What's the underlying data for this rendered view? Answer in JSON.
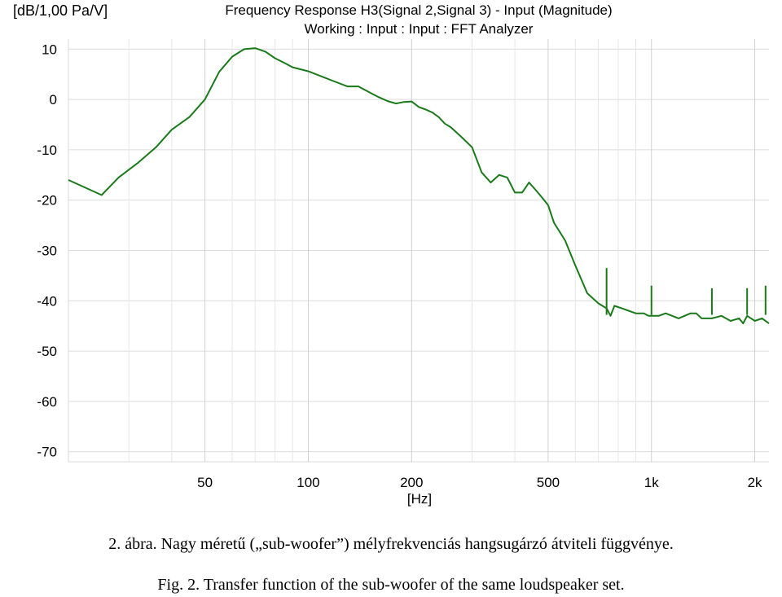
{
  "chart_data": {
    "type": "line",
    "title": "Frequency Response H3(Signal 2,Signal 3) - Input (Magnitude)",
    "subtitle": "Working : Input : Input : FFT Analyzer",
    "ylabel": "[dB/1,00 Pa/V]",
    "xlabel": "[Hz]",
    "x_scale": "log",
    "xlim": [
      20,
      2200
    ],
    "ylim": [
      -72,
      12
    ],
    "y_ticks": [
      10,
      0,
      -10,
      -20,
      -30,
      -40,
      -50,
      -60,
      -70
    ],
    "y_tick_labels": [
      "10",
      "0",
      "-10",
      "-20",
      "-30",
      "-40",
      "-50",
      "-60",
      "-70"
    ],
    "x_ticks": [
      50,
      100,
      200,
      500,
      1000,
      2000
    ],
    "x_tick_labels": [
      "50",
      "100",
      "200",
      "500",
      "1k",
      "2k"
    ],
    "x_grid_minor": [
      30,
      40,
      60,
      70,
      80,
      90,
      300,
      400,
      600,
      700,
      800,
      900
    ],
    "grid": true,
    "line_color": "#1a7a1a",
    "series": [
      {
        "x": [
          20,
          25,
          28,
          32,
          36,
          40,
          45,
          50,
          55,
          60,
          65,
          70,
          75,
          80,
          85,
          90,
          100,
          110,
          120,
          130,
          140,
          150,
          160,
          170,
          180,
          190,
          200,
          210,
          220,
          230,
          240,
          250,
          260,
          280,
          300,
          320,
          340,
          360,
          380,
          400,
          420,
          440,
          460,
          480,
          500,
          520,
          560,
          600,
          650,
          700,
          740,
          760,
          780,
          820,
          900,
          950,
          980,
          1050,
          1100,
          1200,
          1300,
          1350,
          1400,
          1500,
          1600,
          1700,
          1800,
          1850,
          1900,
          2000,
          2100,
          2200
        ],
        "y": [
          -16,
          -19,
          -15.5,
          -12.5,
          -9.5,
          -6,
          -3.5,
          0,
          5.5,
          8.5,
          10,
          10.2,
          9.5,
          8.2,
          7.3,
          6.4,
          5.6,
          4.5,
          3.5,
          2.6,
          2.6,
          1.5,
          0.5,
          -0.3,
          -0.8,
          -0.5,
          -0.4,
          -1.5,
          -2,
          -2.6,
          -3.5,
          -4.8,
          -5.5,
          -7.5,
          -9.5,
          -14.5,
          -16.5,
          -15,
          -15.5,
          -18.5,
          -18.5,
          -16.5,
          -18,
          -19.5,
          -21,
          -24.5,
          -28,
          -33,
          -38.5,
          -40.5,
          -41.5,
          -43,
          -41,
          -41.5,
          -42.5,
          -42.5,
          -43,
          -43,
          -42.5,
          -43.5,
          -42.5,
          -42.5,
          -43.5,
          -43.5,
          -43,
          -44,
          -43.5,
          -44.5,
          -43,
          -44,
          -43.5,
          -44.5
        ],
        "spikes": [
          {
            "x": 740,
            "y": -33.5
          },
          {
            "x": 1000,
            "y": -37
          },
          {
            "x": 1500,
            "y": -37.5
          },
          {
            "x": 1900,
            "y": -37.5
          },
          {
            "x": 2150,
            "y": -37
          }
        ]
      }
    ]
  },
  "captions": {
    "hu": "2. ábra. Nagy méretű („sub-woofer”) mélyfrekvenciás hangsugárzó átviteli függvénye.",
    "en": "Fig. 2. Transfer function of the sub-woofer of the same loudspeaker set."
  }
}
